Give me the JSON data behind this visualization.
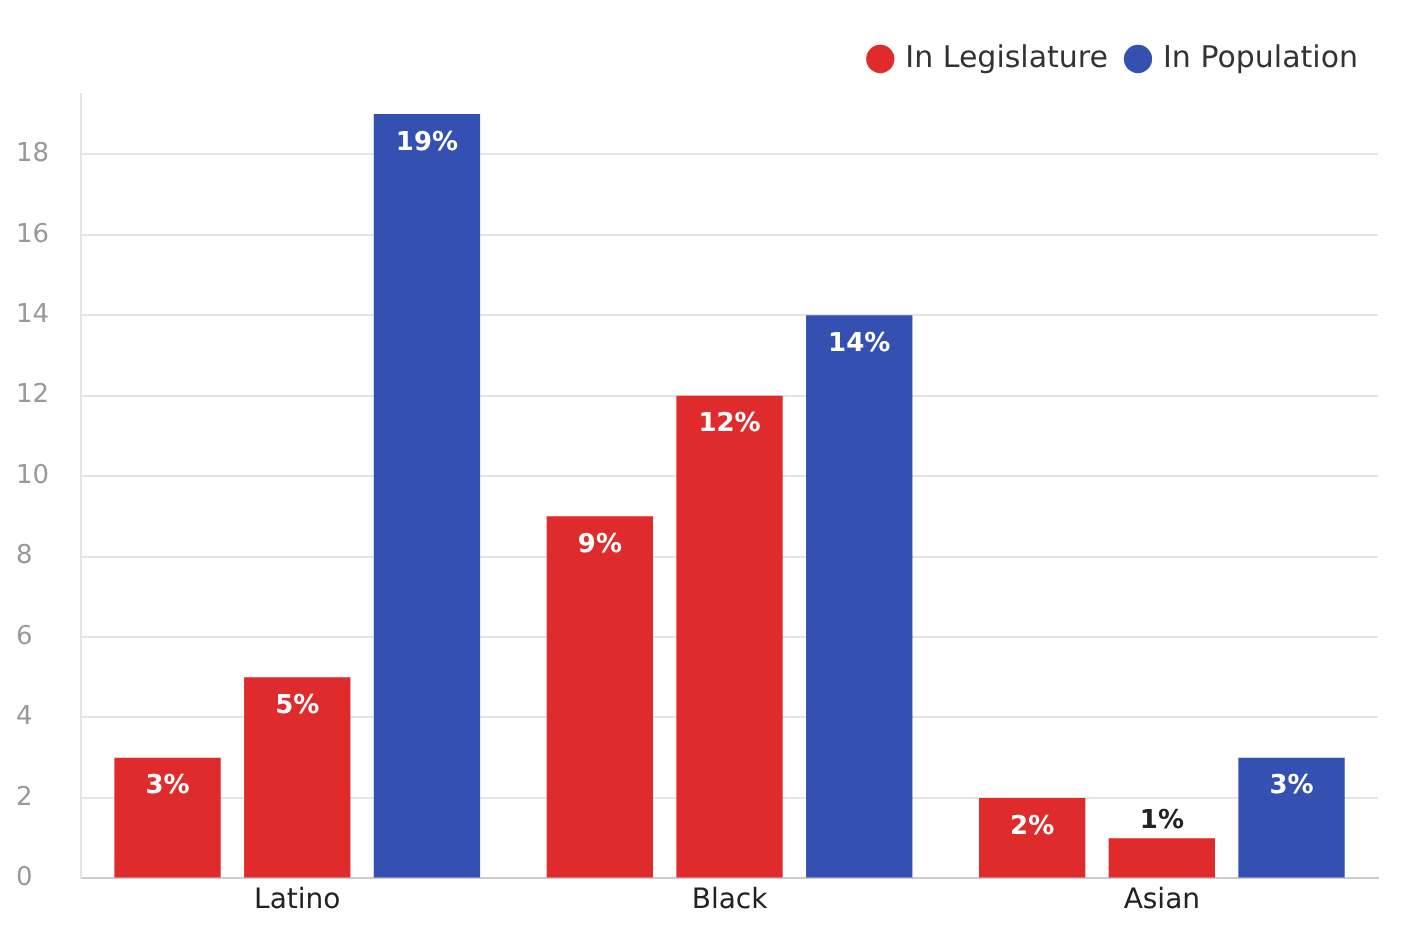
{
  "chart_data": {
    "type": "bar",
    "categories": [
      "Latino",
      "Black",
      "Asian"
    ],
    "series": [
      {
        "name": "In Legislature",
        "color": "#df2b2b",
        "values": [
          3,
          9,
          2
        ],
        "value_labels": [
          "3%",
          "9%",
          "2%"
        ]
      },
      {
        "color": "#df2b2b",
        "values": [
          5,
          12,
          1
        ],
        "value_labels": [
          "5%",
          "12%",
          "1%"
        ]
      },
      {
        "name": "In Population",
        "color": "#3450b0",
        "values": [
          19,
          14,
          3
        ],
        "value_labels": [
          "19%",
          "14%",
          "3%"
        ]
      }
    ],
    "ylim": [
      0,
      19.5
    ],
    "yticks": [
      0,
      2,
      4,
      6,
      8,
      10,
      12,
      14,
      16,
      18
    ],
    "grid": "y",
    "legend": "top right"
  }
}
